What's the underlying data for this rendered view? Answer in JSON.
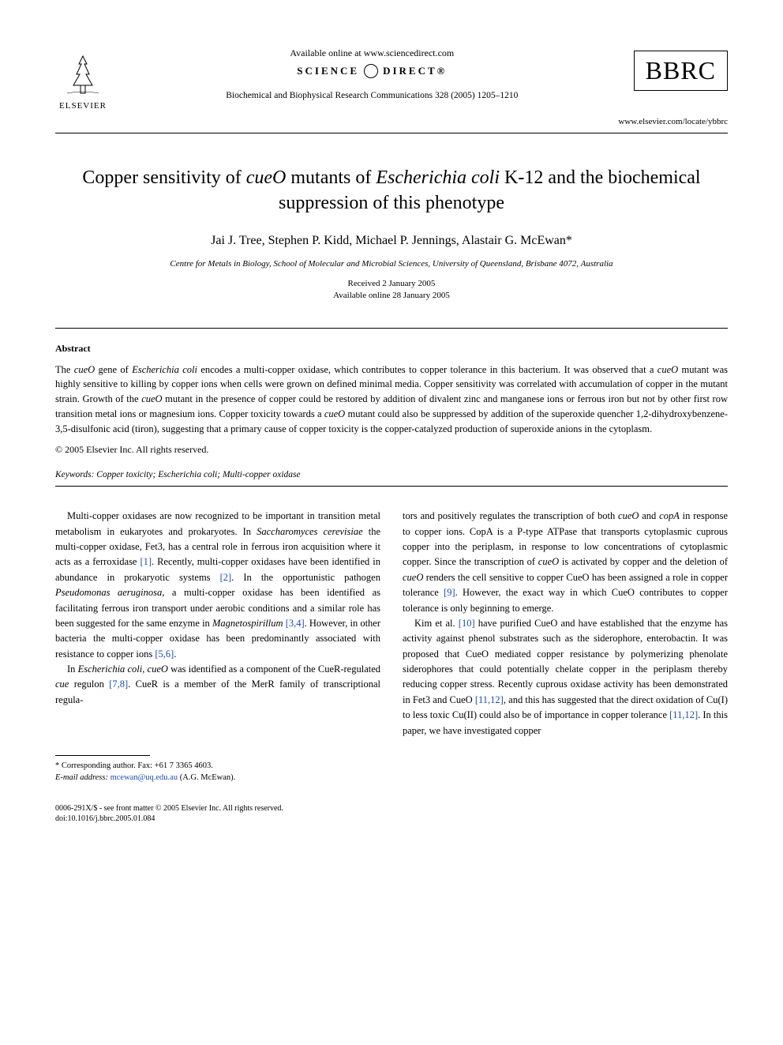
{
  "header": {
    "elsevier_label": "ELSEVIER",
    "available_online": "Available online at www.sciencedirect.com",
    "sciencedirect": "SCIENCE DIRECT®",
    "journal_reference": "Biochemical and Biophysical Research Communications 328 (2005) 1205–1210",
    "bbrc": "BBRC",
    "journal_url": "www.elsevier.com/locate/ybbrc"
  },
  "title_parts": {
    "pre": "Copper sensitivity of ",
    "i1": "cueO",
    "mid1": " mutants of ",
    "i2": "Escherichia coli",
    "post": " K-12 and the biochemical suppression of this phenotype"
  },
  "authors": "Jai J. Tree, Stephen P. Kidd, Michael P. Jennings, Alastair G. McEwan*",
  "affiliation": "Centre for Metals in Biology, School of Molecular and Microbial Sciences, University of Queensland, Brisbane 4072, Australia",
  "dates": {
    "received": "Received 2 January 2005",
    "available": "Available online 28 January 2005"
  },
  "abstract": {
    "label": "Abstract",
    "text_parts": [
      {
        "t": "The "
      },
      {
        "t": "cueO",
        "i": true
      },
      {
        "t": " gene of "
      },
      {
        "t": "Escherichia coli",
        "i": true
      },
      {
        "t": " encodes a multi-copper oxidase, which contributes to copper tolerance in this bacterium. It was observed that a "
      },
      {
        "t": "cueO",
        "i": true
      },
      {
        "t": " mutant was highly sensitive to killing by copper ions when cells were grown on defined minimal media. Copper sensitivity was correlated with accumulation of copper in the mutant strain. Growth of the "
      },
      {
        "t": "cueO",
        "i": true
      },
      {
        "t": " mutant in the presence of copper could be restored by addition of divalent zinc and manganese ions or ferrous iron but not by other first row transition metal ions or magnesium ions. Copper toxicity towards a "
      },
      {
        "t": "cueO",
        "i": true
      },
      {
        "t": " mutant could also be suppressed by addition of the superoxide quencher 1,2-dihydroxybenzene-3,5-disulfonic acid (tiron), suggesting that a primary cause of copper toxicity is the copper-catalyzed production of superoxide anions in the cytoplasm."
      }
    ],
    "copyright": "© 2005 Elsevier Inc. All rights reserved."
  },
  "keywords": {
    "label": "Keywords:",
    "text": " Copper toxicity; Escherichia coli; Multi-copper oxidase"
  },
  "body": {
    "col1": {
      "p1_parts": [
        {
          "t": "Multi-copper oxidases are now recognized to be important in transition metal metabolism in eukaryotes and prokaryotes. In "
        },
        {
          "t": "Saccharomyces cerevisiae",
          "i": true
        },
        {
          "t": " the multi-copper oxidase, Fet3, has a central role in ferrous iron acquisition where it acts as a ferroxidase "
        },
        {
          "t": "[1]",
          "ref": true
        },
        {
          "t": ". Recently, multi-copper oxidases have been identified in abundance in prokaryotic systems "
        },
        {
          "t": "[2]",
          "ref": true
        },
        {
          "t": ". In the opportunistic pathogen "
        },
        {
          "t": "Pseudomonas aeruginosa",
          "i": true
        },
        {
          "t": ", a multi-copper oxidase has been identified as facilitating ferrous iron transport under aerobic conditions and a similar role has been suggested for the same enzyme in "
        },
        {
          "t": "Magnetospirillum",
          "i": true
        },
        {
          "t": " "
        },
        {
          "t": "[3,4]",
          "ref": true
        },
        {
          "t": ". However, in other bacteria the multi-copper oxidase has been predominantly associated with resistance to copper ions "
        },
        {
          "t": "[5,6]",
          "ref": true
        },
        {
          "t": "."
        }
      ],
      "p2_parts": [
        {
          "t": "In "
        },
        {
          "t": "Escherichia coli",
          "i": true
        },
        {
          "t": ", "
        },
        {
          "t": "cueO",
          "i": true
        },
        {
          "t": " was identified as a component of the CueR-regulated "
        },
        {
          "t": "cue",
          "i": true
        },
        {
          "t": " regulon "
        },
        {
          "t": "[7,8]",
          "ref": true
        },
        {
          "t": ". CueR is a member of the MerR family of transcriptional regula-"
        }
      ]
    },
    "col2": {
      "p1_parts": [
        {
          "t": "tors and positively regulates the transcription of both "
        },
        {
          "t": "cueO",
          "i": true
        },
        {
          "t": " and "
        },
        {
          "t": "copA",
          "i": true
        },
        {
          "t": " in response to copper ions. CopA is a P-type ATPase that transports cytoplasmic cuprous copper into the periplasm, in response to low concentrations of cytoplasmic copper. Since the transcription of "
        },
        {
          "t": "cueO",
          "i": true
        },
        {
          "t": " is activated by copper and the deletion of "
        },
        {
          "t": "cueO",
          "i": true
        },
        {
          "t": " renders the cell sensitive to copper CueO has been assigned a role in copper tolerance "
        },
        {
          "t": "[9]",
          "ref": true
        },
        {
          "t": ". However, the exact way in which CueO contributes to copper tolerance is only beginning to emerge."
        }
      ],
      "p2_parts": [
        {
          "t": "Kim et al. "
        },
        {
          "t": "[10]",
          "ref": true
        },
        {
          "t": " have purified CueO and have established that the enzyme has activity against phenol substrates such as the siderophore, enterobactin. It was proposed that CueO mediated copper resistance by polymerizing phenolate siderophores that could potentially chelate copper in the periplasm thereby reducing copper stress. Recently cuprous oxidase activity has been demonstrated in Fet3 and CueO "
        },
        {
          "t": "[11,12]",
          "ref": true
        },
        {
          "t": ", and this has suggested that the direct oxidation of Cu(I) to less toxic Cu(II) could also be of importance in copper tolerance "
        },
        {
          "t": "[11,12]",
          "ref": true
        },
        {
          "t": ". In this paper, we have investigated copper"
        }
      ]
    }
  },
  "footnote": {
    "corresponding": "* Corresponding author. Fax: +61 7 3365 4603.",
    "email_label": "E-mail address:",
    "email": "mcewan@uq.edu.au",
    "email_suffix": " (A.G. McEwan)."
  },
  "footer": {
    "line1": "0006-291X/$ - see front matter © 2005 Elsevier Inc. All rights reserved.",
    "line2": "doi:10.1016/j.bbrc.2005.01.084"
  },
  "colors": {
    "link": "#1a4db3",
    "text": "#000000",
    "bg": "#ffffff"
  }
}
